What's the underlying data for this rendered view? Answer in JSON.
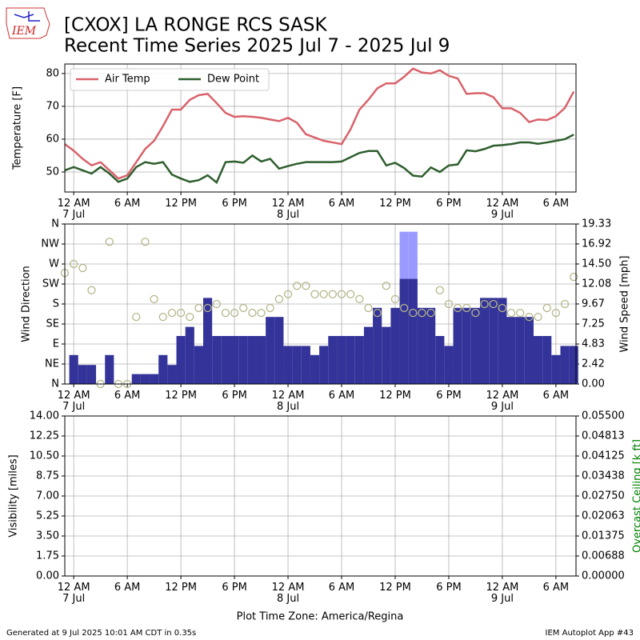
{
  "logo": "IEM",
  "title": "[CXOX] LA RONGE RCS  SASK",
  "subtitle": "Recent Time Series 2025 Jul 7 - 2025 Jul 9",
  "xlabel": "Plot Time Zone: America/Regina",
  "footer_left": "Generated at 9 Jul 2025 10:01 AM CDT in 0.35s",
  "footer_right": "IEM Autoplot App #43",
  "chart_data": [
    {
      "type": "line",
      "ylabel": "Temperature [F]",
      "grid": true,
      "legend": "upper left",
      "xlim": [
        -1,
        56.25
      ],
      "xticks": [
        {
          "value": 0,
          "label": "12 AM\n7 Jul"
        },
        {
          "value": 6,
          "label": "6 AM"
        },
        {
          "value": 12,
          "label": "12 PM"
        },
        {
          "value": 18,
          "label": "6 PM"
        },
        {
          "value": 24,
          "label": "12 AM\n8 Jul"
        },
        {
          "value": 30,
          "label": "6 AM"
        },
        {
          "value": 36,
          "label": "12 PM"
        },
        {
          "value": 42,
          "label": "6 PM"
        },
        {
          "value": 48,
          "label": "12 AM\n9 Jul"
        },
        {
          "value": 54,
          "label": "6 AM"
        }
      ],
      "ylim": [
        43.9,
        82.9
      ],
      "yticks": [
        50,
        60,
        70,
        80
      ],
      "x": [
        -1,
        0,
        1,
        2,
        3,
        4,
        5,
        6,
        7,
        8,
        9,
        10,
        11,
        12,
        13,
        14,
        15,
        16,
        17,
        18,
        19,
        20,
        21,
        22,
        23,
        24,
        25,
        26,
        27,
        28,
        29,
        30,
        31,
        32,
        33,
        34,
        35,
        36,
        37,
        38,
        39,
        40,
        41,
        42,
        43,
        44,
        45,
        46,
        47,
        48,
        49,
        50,
        51,
        52,
        53,
        54,
        55,
        56
      ],
      "series": [
        {
          "name": "Air Temp",
          "color": "#d9626b",
          "values": [
            58.5,
            56.5,
            54,
            52,
            53,
            50.5,
            48,
            49,
            53,
            57,
            59.5,
            64,
            69,
            69,
            72,
            73.4,
            73.8,
            71,
            68,
            66.8,
            67,
            66.8,
            66.5,
            66,
            65.5,
            66.5,
            65,
            61.5,
            60.5,
            59.5,
            59,
            58.5,
            63,
            69,
            72,
            75.5,
            77,
            77,
            79,
            81.5,
            80.3,
            80,
            81,
            79.3,
            78.5,
            73.8,
            74,
            74,
            72.8,
            69.4,
            69.4,
            68,
            65.2,
            66,
            65.8,
            67,
            69.5,
            74.5
          ]
        },
        {
          "name": "Dew Point",
          "color": "#2e5e2e",
          "values": [
            50.5,
            51.5,
            50.5,
            49.5,
            51.5,
            49.5,
            47,
            48,
            51.5,
            53,
            52.5,
            53,
            49.2,
            48,
            47,
            47.5,
            49,
            46.8,
            53,
            53.2,
            52.8,
            55,
            53.2,
            54,
            51,
            51.8,
            52.5,
            53,
            53,
            53,
            53,
            53.2,
            54.5,
            55.8,
            56.4,
            56.4,
            52,
            52.8,
            51.2,
            48.9,
            48.6,
            51.4,
            50,
            52,
            52.3,
            56.6,
            56.3,
            57,
            58,
            58.2,
            58.5,
            59,
            59,
            58.6,
            59,
            59.5,
            60,
            61.4
          ]
        }
      ]
    },
    {
      "type": "bar",
      "ylabel": "Wind Direction",
      "y2label": "Wind Speed [mph]",
      "grid": true,
      "xlim": [
        -1,
        56.25
      ],
      "xticks": [
        {
          "value": 0,
          "label": "12 AM\n7 Jul"
        },
        {
          "value": 6,
          "label": "6 AM"
        },
        {
          "value": 12,
          "label": "12 PM"
        },
        {
          "value": 18,
          "label": "6 PM"
        },
        {
          "value": 24,
          "label": "12 AM\n8 Jul"
        },
        {
          "value": 30,
          "label": "6 AM"
        },
        {
          "value": 36,
          "label": "12 PM"
        },
        {
          "value": 42,
          "label": "6 PM"
        },
        {
          "value": 48,
          "label": "12 AM\n9 Jul"
        },
        {
          "value": 54,
          "label": "6 AM"
        }
      ],
      "ylim": [
        0,
        360
      ],
      "yticks": [
        {
          "value": 0,
          "label": "N"
        },
        {
          "value": 45,
          "label": "NE"
        },
        {
          "value": 90,
          "label": "E"
        },
        {
          "value": 135,
          "label": "SE"
        },
        {
          "value": 180,
          "label": "S"
        },
        {
          "value": 225,
          "label": "SW"
        },
        {
          "value": 270,
          "label": "W"
        },
        {
          "value": 315,
          "label": "NW"
        },
        {
          "value": 360,
          "label": "N"
        }
      ],
      "y2lim": [
        0,
        19.33
      ],
      "y2ticks": [
        {
          "value": 0,
          "label": "0.00"
        },
        {
          "value": 2.42,
          "label": "2.42"
        },
        {
          "value": 4.83,
          "label": "4.83"
        },
        {
          "value": 7.25,
          "label": "7.25"
        },
        {
          "value": 9.67,
          "label": "9.67"
        },
        {
          "value": 12.08,
          "label": "12.08"
        },
        {
          "value": 14.5,
          "label": "14.50"
        },
        {
          "value": 16.92,
          "label": "16.92"
        },
        {
          "value": 19.33,
          "label": "19.33"
        }
      ],
      "series": [
        {
          "type": "bar",
          "axis": "y2",
          "color": "#9999ff",
          "x": [
            37,
            38
          ],
          "values": [
            18.4,
            18.4
          ]
        },
        {
          "type": "bar",
          "axis": "y2",
          "color": "#333399",
          "x": [
            0,
            1,
            2,
            3,
            4,
            5,
            6,
            7,
            8,
            9,
            10,
            11,
            12,
            13,
            14,
            15,
            16,
            17,
            18,
            19,
            20,
            21,
            22,
            23,
            24,
            25,
            26,
            27,
            28,
            29,
            30,
            31,
            32,
            33,
            34,
            35,
            36,
            37,
            38,
            39,
            40,
            41,
            42,
            43,
            44,
            45,
            46,
            47,
            48,
            49,
            50,
            51,
            52,
            53,
            54,
            55,
            56
          ],
          "values": [
            3.5,
            2.3,
            2.3,
            0,
            3.5,
            0,
            0,
            1.2,
            1.2,
            1.2,
            3.5,
            2.3,
            5.8,
            6.9,
            4.6,
            10.4,
            5.8,
            5.8,
            5.8,
            5.8,
            5.8,
            5.8,
            8.1,
            8.1,
            4.6,
            4.6,
            4.6,
            3.5,
            4.6,
            5.8,
            5.8,
            5.8,
            5.8,
            6.9,
            9.2,
            6.9,
            9.2,
            12.7,
            12.7,
            9.2,
            9.2,
            5.8,
            4.6,
            9.2,
            9.2,
            9.2,
            10.4,
            10.4,
            10.4,
            8.1,
            8.1,
            8.1,
            5.8,
            5.8,
            3.5,
            4.6,
            4.6
          ]
        },
        {
          "type": "scatter",
          "axis": "y",
          "color": "#b5b58a",
          "x": [
            -1,
            0,
            1,
            2,
            3,
            4,
            5,
            6,
            7,
            8,
            9,
            10,
            11,
            12,
            13,
            14,
            15,
            16,
            17,
            18,
            19,
            20,
            21,
            22,
            23,
            24,
            25,
            26,
            27,
            28,
            29,
            30,
            31,
            32,
            33,
            34,
            35,
            36,
            37,
            38,
            39,
            40,
            41,
            42,
            43,
            44,
            45,
            46,
            47,
            48,
            49,
            50,
            51,
            52,
            53,
            54,
            55,
            56
          ],
          "values": [
            250,
            270,
            261,
            211,
            0,
            320,
            0,
            0,
            151,
            320,
            191,
            151,
            160,
            160,
            151,
            171,
            171,
            180,
            160,
            160,
            171,
            160,
            160,
            171,
            191,
            202,
            221,
            221,
            202,
            202,
            202,
            202,
            202,
            191,
            171,
            160,
            221,
            191,
            171,
            160,
            160,
            160,
            211,
            180,
            171,
            171,
            160,
            180,
            180,
            171,
            160,
            160,
            151,
            151,
            171,
            160,
            180,
            241
          ]
        }
      ]
    },
    {
      "type": "line",
      "ylabel": "Visibility [miles]",
      "y2label": "Overcast Ceiling [k ft]",
      "grid": true,
      "xlim": [
        -1,
        56.25
      ],
      "xticks": [
        {
          "value": 0,
          "label": "12 AM\n7 Jul"
        },
        {
          "value": 6,
          "label": "6 AM"
        },
        {
          "value": 12,
          "label": "12 PM"
        },
        {
          "value": 18,
          "label": "6 PM"
        },
        {
          "value": 24,
          "label": "12 AM\n8 Jul"
        },
        {
          "value": 30,
          "label": "6 AM"
        },
        {
          "value": 36,
          "label": "12 PM"
        },
        {
          "value": 42,
          "label": "6 PM"
        },
        {
          "value": 48,
          "label": "12 AM\n9 Jul"
        },
        {
          "value": 54,
          "label": "6 AM"
        }
      ],
      "ylim": [
        0,
        14
      ],
      "yticks": [
        {
          "value": 0,
          "label": "0.00"
        },
        {
          "value": 1.75,
          "label": "1.75"
        },
        {
          "value": 3.5,
          "label": "3.50"
        },
        {
          "value": 5.25,
          "label": "5.25"
        },
        {
          "value": 7,
          "label": "7.00"
        },
        {
          "value": 8.75,
          "label": "8.75"
        },
        {
          "value": 10.5,
          "label": "10.50"
        },
        {
          "value": 12.25,
          "label": "12.25"
        },
        {
          "value": 14,
          "label": "14.00"
        }
      ],
      "y2lim": [
        0,
        0.055
      ],
      "y2color": "#008000",
      "y2ticks": [
        {
          "value": 0,
          "label": "0.00000"
        },
        {
          "value": 0.006875,
          "label": "0.00688"
        },
        {
          "value": 0.01375,
          "label": "0.01375"
        },
        {
          "value": 0.020625,
          "label": "0.02063"
        },
        {
          "value": 0.0275,
          "label": "0.02750"
        },
        {
          "value": 0.034375,
          "label": "0.03438"
        },
        {
          "value": 0.04125,
          "label": "0.04125"
        },
        {
          "value": 0.048125,
          "label": "0.04813"
        },
        {
          "value": 0.055,
          "label": "0.05500"
        }
      ],
      "series": []
    }
  ]
}
